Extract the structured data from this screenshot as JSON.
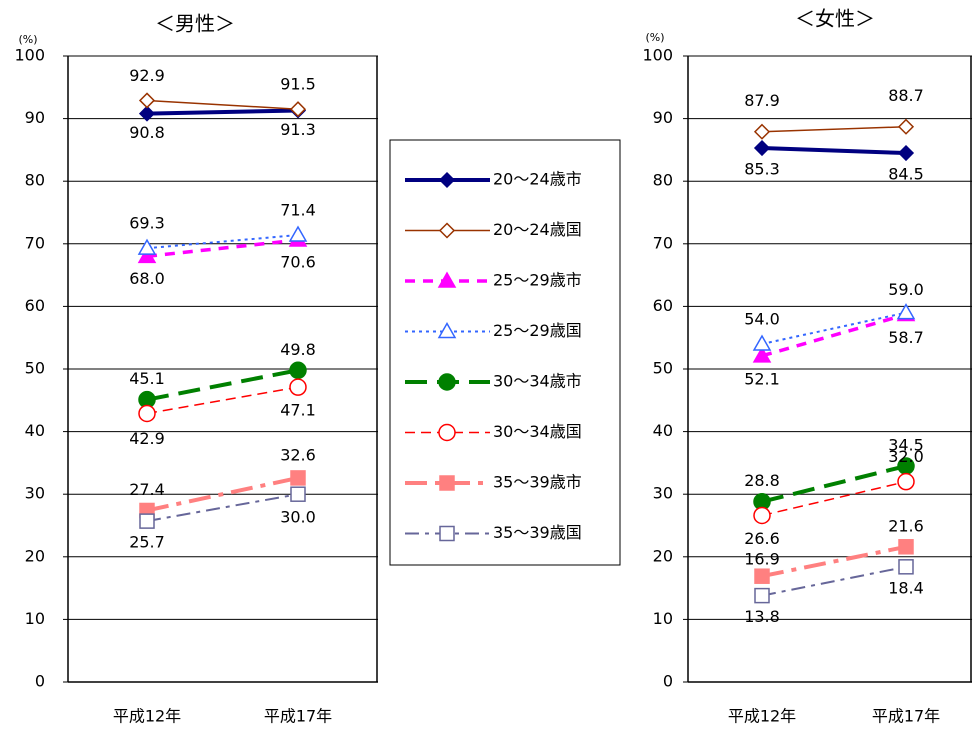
{
  "chart_data": [
    {
      "type": "line",
      "title": "＜男性＞",
      "ylabel": "(%)",
      "categories": [
        "平成12年",
        "平成17年"
      ],
      "ylim": [
        0,
        100
      ],
      "yticks": [
        0,
        10,
        20,
        30,
        40,
        50,
        60,
        70,
        80,
        90,
        100
      ],
      "grid": true,
      "series": [
        {
          "name": "20～24歳市",
          "color": "#000080",
          "values": [
            90.8,
            91.3
          ]
        },
        {
          "name": "20～24歳国",
          "color": "#993300",
          "values": [
            92.9,
            91.5
          ]
        },
        {
          "name": "25～29歳市",
          "color": "#ff00ff",
          "values": [
            68.0,
            70.6
          ],
          "value_labels": [
            "68.0",
            "70.6"
          ]
        },
        {
          "name": "25～29歳国",
          "color": "#3366ff",
          "values": [
            69.3,
            71.4
          ]
        },
        {
          "name": "30～34歳市",
          "color": "#008000",
          "values": [
            45.1,
            49.8
          ]
        },
        {
          "name": "30～34歳国",
          "color": "#ff0000",
          "values": [
            42.9,
            47.1
          ]
        },
        {
          "name": "35～39歳市",
          "color": "#ff8080",
          "values": [
            27.4,
            32.6
          ]
        },
        {
          "name": "35～39歳国",
          "color": "#666699",
          "values": [
            25.7,
            30.0
          ],
          "value_labels": [
            "25.7",
            "30.0"
          ]
        }
      ]
    },
    {
      "type": "line",
      "title": "＜女性＞",
      "ylabel": "(%)",
      "categories": [
        "平成12年",
        "平成17年"
      ],
      "ylim": [
        0,
        100
      ],
      "yticks": [
        0,
        10,
        20,
        30,
        40,
        50,
        60,
        70,
        80,
        90,
        100
      ],
      "grid": true,
      "series": [
        {
          "values": [
            85.3,
            84.5
          ]
        },
        {
          "values": [
            87.9,
            88.7
          ]
        },
        {
          "values": [
            52.1,
            58.7
          ]
        },
        {
          "values": [
            54.0,
            59.0
          ],
          "value_labels": [
            "54.0",
            "59.0"
          ]
        },
        {
          "values": [
            28.8,
            34.5
          ]
        },
        {
          "values": [
            26.6,
            32.0
          ],
          "value_labels": [
            "26.6",
            "32.0"
          ]
        },
        {
          "values": [
            16.9,
            21.6
          ]
        },
        {
          "values": [
            13.8,
            18.4
          ]
        }
      ]
    }
  ]
}
